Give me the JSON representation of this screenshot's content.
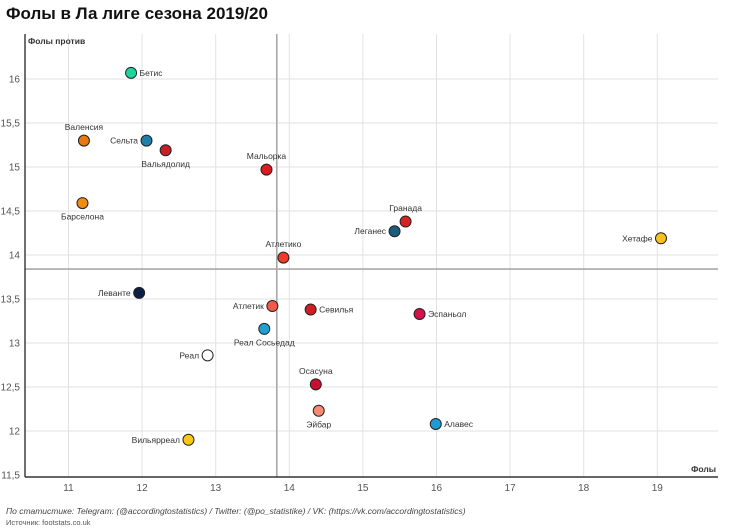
{
  "title": "Фолы в Ла лиге сезона 2019/20",
  "footer": {
    "credit": "По статистике: Telegram: (@accordingtostatistics) / Twitter: (@po_statistike) / VK: (https://vk.com/accordingtostatistics)",
    "source": "Источник: footstats.co.uk"
  },
  "chart_data": {
    "type": "scatter",
    "title": "Фолы в Ла лиге сезона 2019/20",
    "xlabel": "Фолы",
    "ylabel": "Фолы против",
    "xlim": [
      10.4,
      19.8
    ],
    "ylim": [
      11.5,
      16.4
    ],
    "x_ticks": [
      11,
      12,
      13,
      14,
      15,
      16,
      17,
      18,
      19
    ],
    "y_ticks": [
      11.5,
      12,
      12.5,
      13,
      13.5,
      14,
      14.5,
      15,
      15.5,
      16
    ],
    "y_tick_labels": [
      "11,5",
      "12",
      "12,5",
      "13",
      "13,5",
      "14",
      "14,5",
      "15",
      "15,5",
      "16"
    ],
    "grid": true,
    "reference_lines": {
      "x_mean": 13.83,
      "y_mean": 13.84
    },
    "points": [
      {
        "team": "Бетис",
        "x": 11.85,
        "y": 16.07,
        "color": "#1fd39a",
        "label_pos": "right"
      },
      {
        "team": "Валенсия",
        "x": 11.21,
        "y": 15.3,
        "color": "#e8780f",
        "label_pos": "top"
      },
      {
        "team": "Сельта",
        "x": 12.06,
        "y": 15.3,
        "color": "#1f7fa8",
        "label_pos": "left"
      },
      {
        "team": "Вальядолид",
        "x": 12.32,
        "y": 15.19,
        "color": "#c81e28",
        "label_pos": "bottom"
      },
      {
        "team": "Барселона",
        "x": 11.19,
        "y": 14.59,
        "color": "#f28c12",
        "label_pos": "bottom"
      },
      {
        "team": "Мальорка",
        "x": 13.69,
        "y": 14.97,
        "color": "#dc1a1f",
        "label_pos": "top"
      },
      {
        "team": "Гранада",
        "x": 15.58,
        "y": 14.38,
        "color": "#d42424",
        "label_pos": "top"
      },
      {
        "team": "Леганес",
        "x": 15.43,
        "y": 14.27,
        "color": "#1c5d7e",
        "label_pos": "left"
      },
      {
        "team": "Хетафе",
        "x": 19.05,
        "y": 14.19,
        "color": "#f7c21c",
        "label_pos": "left"
      },
      {
        "team": "Атлетико",
        "x": 13.92,
        "y": 13.97,
        "color": "#f03a2a",
        "label_pos": "top"
      },
      {
        "team": "Леванте",
        "x": 11.96,
        "y": 13.57,
        "color": "#0c1f45",
        "label_pos": "left"
      },
      {
        "team": "Атлетик",
        "x": 13.77,
        "y": 13.42,
        "color": "#f45a4a",
        "label_pos": "left"
      },
      {
        "team": "Севилья",
        "x": 14.29,
        "y": 13.38,
        "color": "#cf1f25",
        "label_pos": "right"
      },
      {
        "team": "Эспаньол",
        "x": 15.77,
        "y": 13.33,
        "color": "#d4134a",
        "label_pos": "right"
      },
      {
        "team": "Реал Сосьедад",
        "x": 13.66,
        "y": 13.16,
        "color": "#20a0d0",
        "label_pos": "bottom"
      },
      {
        "team": "Реал",
        "x": 12.89,
        "y": 12.86,
        "color": "#ffffff",
        "label_pos": "left"
      },
      {
        "team": "Осасуна",
        "x": 14.36,
        "y": 12.53,
        "color": "#c8102e",
        "label_pos": "top"
      },
      {
        "team": "Эйбар",
        "x": 14.4,
        "y": 12.23,
        "color": "#f78a72",
        "label_pos": "bottom"
      },
      {
        "team": "Алавес",
        "x": 15.99,
        "y": 12.08,
        "color": "#1e9bd2",
        "label_pos": "right"
      },
      {
        "team": "Вильярреал",
        "x": 12.63,
        "y": 11.9,
        "color": "#fbc814",
        "label_pos": "left"
      }
    ]
  }
}
